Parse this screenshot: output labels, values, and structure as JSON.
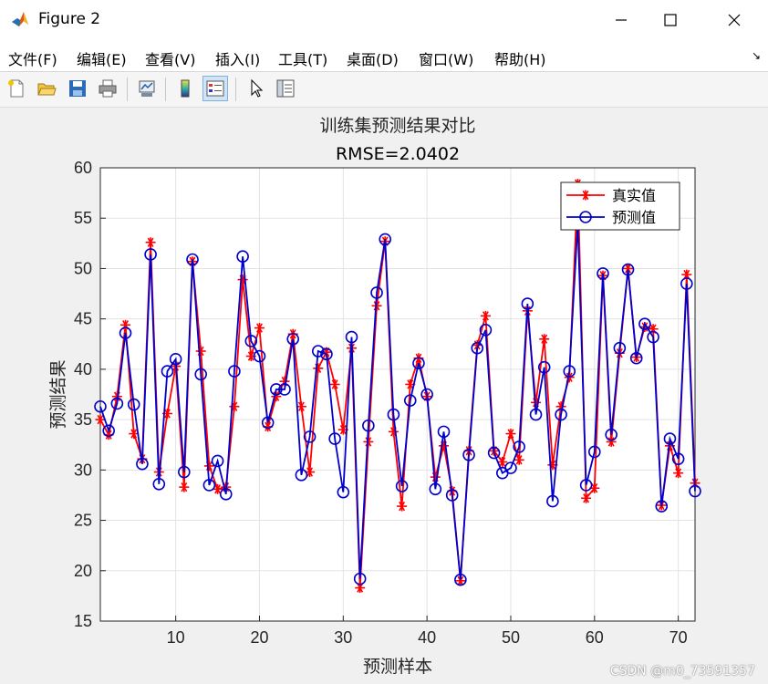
{
  "window": {
    "title": "Figure 2",
    "minimize_icon": "minimize-icon",
    "maximize_icon": "maximize-icon",
    "close_icon": "close-icon"
  },
  "menu": {
    "items": [
      {
        "label": "文件(F)"
      },
      {
        "label": "编辑(E)"
      },
      {
        "label": "查看(V)"
      },
      {
        "label": "插入(I)"
      },
      {
        "label": "工具(T)"
      },
      {
        "label": "桌面(D)"
      },
      {
        "label": "窗口(W)"
      },
      {
        "label": "帮助(H)"
      }
    ]
  },
  "toolbar": {
    "icons": [
      "new-figure-icon",
      "open-file-icon",
      "save-icon",
      "print-icon",
      "link-plot-icon",
      "colorbar-icon",
      "legend-icon",
      "pointer-icon",
      "property-inspector-icon"
    ]
  },
  "watermark": "CSDN @m0_73591357",
  "chart_data": {
    "type": "line",
    "title": "训练集预测结果对比",
    "subtitle": "RMSE=2.0402",
    "xlabel": "预测样本",
    "ylabel": "预测结果",
    "xlim": [
      1,
      72
    ],
    "ylim": [
      15,
      60
    ],
    "xticks": [
      10,
      20,
      30,
      40,
      50,
      60,
      70
    ],
    "yticks": [
      15,
      20,
      25,
      30,
      35,
      40,
      45,
      50,
      55,
      60
    ],
    "grid": true,
    "legend_position": "top-right",
    "x": [
      1,
      2,
      3,
      4,
      5,
      6,
      7,
      8,
      9,
      10,
      11,
      12,
      13,
      14,
      15,
      16,
      17,
      18,
      19,
      20,
      21,
      22,
      23,
      24,
      25,
      26,
      27,
      28,
      29,
      30,
      31,
      32,
      33,
      34,
      35,
      36,
      37,
      38,
      39,
      40,
      41,
      42,
      43,
      44,
      45,
      46,
      47,
      48,
      49,
      50,
      51,
      52,
      53,
      54,
      55,
      56,
      57,
      58,
      59,
      60,
      61,
      62,
      63,
      64,
      65,
      66,
      67,
      68,
      69,
      70,
      71,
      72
    ],
    "series": [
      {
        "name": "真实值",
        "color": "#ff0000",
        "marker": "asterisk",
        "values": [
          35.0,
          33.5,
          37.3,
          44.4,
          33.6,
          31.1,
          52.6,
          29.8,
          35.6,
          40.3,
          28.3,
          50.7,
          41.8,
          30.4,
          28.1,
          28.3,
          36.3,
          48.9,
          41.3,
          44.1,
          34.3,
          37.3,
          38.8,
          43.5,
          36.3,
          29.8,
          40.1,
          41.7,
          38.5,
          34.0,
          42.1,
          18.3,
          32.8,
          46.3,
          52.7,
          33.8,
          26.4,
          38.5,
          41.1,
          37.3,
          29.3,
          32.4,
          27.9,
          19.0,
          31.9,
          42.4,
          45.3,
          31.9,
          30.8,
          33.6,
          31.0,
          45.8,
          36.7,
          43.0,
          30.5,
          36.3,
          39.2,
          58.4,
          27.2,
          28.2,
          49.3,
          32.8,
          41.6,
          50.0,
          41.2,
          44.2,
          44.0,
          26.5,
          32.4,
          29.7,
          49.4,
          28.7
        ]
      },
      {
        "name": "预测值",
        "color": "#0000cc",
        "marker": "circle",
        "values": [
          36.3,
          33.9,
          36.6,
          43.6,
          36.5,
          30.6,
          51.4,
          28.6,
          39.8,
          41.0,
          29.8,
          50.9,
          39.5,
          28.5,
          30.9,
          27.6,
          39.8,
          51.2,
          42.8,
          41.3,
          34.7,
          38.0,
          38.0,
          43.0,
          29.5,
          33.3,
          41.8,
          41.5,
          33.1,
          27.8,
          43.2,
          19.2,
          34.4,
          47.6,
          52.9,
          35.5,
          28.4,
          36.9,
          40.6,
          37.5,
          28.1,
          33.8,
          27.5,
          19.1,
          31.5,
          42.1,
          43.9,
          31.7,
          29.7,
          30.2,
          32.3,
          46.5,
          35.5,
          40.2,
          26.9,
          35.5,
          39.8,
          54.5,
          28.5,
          31.8,
          49.5,
          33.5,
          42.1,
          49.9,
          41.1,
          44.5,
          43.2,
          26.4,
          33.1,
          31.1,
          48.5,
          27.9
        ]
      }
    ]
  }
}
